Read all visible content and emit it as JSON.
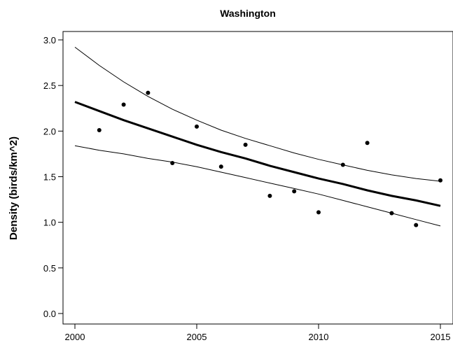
{
  "chart_data": {
    "type": "scatter",
    "title": "Washington",
    "xlabel": "",
    "ylabel": "Density (birds/km^2)",
    "xlim": [
      2000,
      2015
    ],
    "ylim": [
      0.0,
      3.0
    ],
    "x_ticks": [
      "2000",
      "2005",
      "2010",
      "2015"
    ],
    "y_ticks": [
      "0.0",
      "0.5",
      "1.0",
      "1.5",
      "2.0",
      "2.5",
      "3.0"
    ],
    "grid": false,
    "points": {
      "x": [
        2001,
        2002,
        2003,
        2004,
        2005,
        2006,
        2007,
        2008,
        2009,
        2010,
        2011,
        2012,
        2013,
        2014,
        2015
      ],
      "y": [
        2.01,
        2.29,
        2.42,
        1.65,
        2.05,
        1.61,
        1.85,
        1.29,
        1.34,
        1.11,
        1.63,
        1.87,
        1.1,
        0.97,
        1.46
      ]
    },
    "trend": {
      "x": [
        2000,
        2001,
        2002,
        2003,
        2004,
        2005,
        2006,
        2007,
        2008,
        2009,
        2010,
        2011,
        2012,
        2013,
        2014,
        2015
      ],
      "y": [
        2.32,
        2.22,
        2.12,
        2.03,
        1.94,
        1.85,
        1.77,
        1.7,
        1.62,
        1.55,
        1.48,
        1.42,
        1.35,
        1.29,
        1.24,
        1.18
      ]
    },
    "upper_bound": {
      "x": [
        2000,
        2001,
        2002,
        2003,
        2004,
        2005,
        2006,
        2007,
        2008,
        2009,
        2010,
        2011,
        2012,
        2013,
        2014,
        2015
      ],
      "y": [
        2.92,
        2.72,
        2.54,
        2.38,
        2.24,
        2.12,
        2.01,
        1.92,
        1.84,
        1.76,
        1.69,
        1.63,
        1.57,
        1.52,
        1.48,
        1.45
      ]
    },
    "lower_bound": {
      "x": [
        2000,
        2001,
        2002,
        2003,
        2004,
        2005,
        2006,
        2007,
        2008,
        2009,
        2010,
        2011,
        2012,
        2013,
        2014,
        2015
      ],
      "y": [
        1.84,
        1.79,
        1.75,
        1.7,
        1.66,
        1.61,
        1.55,
        1.49,
        1.43,
        1.37,
        1.31,
        1.24,
        1.17,
        1.1,
        1.03,
        0.96
      ]
    }
  }
}
